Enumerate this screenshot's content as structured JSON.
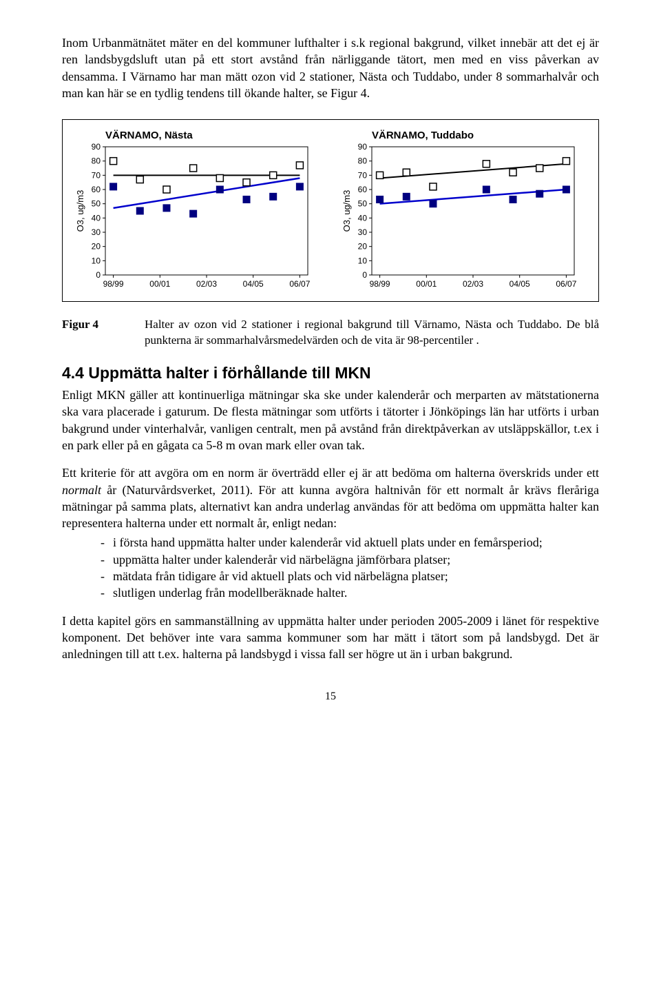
{
  "intro_para": "Inom Urbanmätnätet mäter en del kommuner lufthalter i s.k regional bakgrund, vilket innebär att det ej är ren landsbygdsluft utan på ett stort avstånd från närliggande tätort, men med en viss påverkan av densamma. I Värnamo har man mätt ozon vid 2 stationer, Nästa och Tuddabo, under 8 sommarhalvår och man kan här se en tydlig tendens till ökande halter, se Figur 4.",
  "charts": {
    "left": {
      "title": "VÄRNAMO, Nästa",
      "y_label": "O3, ug/m3",
      "y_ticks": [
        0,
        10,
        20,
        30,
        40,
        50,
        60,
        70,
        80,
        90
      ],
      "x_ticks": [
        "98/99",
        "00/01",
        "02/03",
        "04/05",
        "06/07"
      ],
      "white_markers": [
        [
          0,
          80
        ],
        [
          1,
          67
        ],
        [
          2,
          60
        ],
        [
          3,
          75
        ],
        [
          4,
          68
        ],
        [
          5,
          65
        ],
        [
          6,
          70
        ],
        [
          7,
          77
        ]
      ],
      "blue_markers": [
        [
          0,
          62
        ],
        [
          1,
          45
        ],
        [
          2,
          47
        ],
        [
          3,
          43
        ],
        [
          4,
          60
        ],
        [
          5,
          53
        ],
        [
          6,
          55
        ],
        [
          7,
          62
        ]
      ],
      "black_line": {
        "y0": 70,
        "y1": 70
      },
      "blue_line": {
        "y0": 47,
        "y1": 68
      },
      "colors": {
        "marker_fill": "#000080",
        "marker_border": "#000000",
        "white_fill": "#ffffff",
        "black": "#000000",
        "blue": "#0000cc",
        "grid": "#000000"
      }
    },
    "right": {
      "title": "VÄRNAMO, Tuddabo",
      "y_label": "O3, ug/m3",
      "y_ticks": [
        0,
        10,
        20,
        30,
        40,
        50,
        60,
        70,
        80,
        90
      ],
      "x_ticks": [
        "98/99",
        "00/01",
        "02/03",
        "04/05",
        "06/07"
      ],
      "white_markers": [
        [
          0,
          70
        ],
        [
          1,
          72
        ],
        [
          2,
          62
        ],
        [
          4,
          78
        ],
        [
          5,
          72
        ],
        [
          6,
          75
        ],
        [
          7,
          80
        ]
      ],
      "blue_markers": [
        [
          0,
          53
        ],
        [
          1,
          55
        ],
        [
          2,
          50
        ],
        [
          4,
          60
        ],
        [
          5,
          53
        ],
        [
          6,
          57
        ],
        [
          7,
          60
        ]
      ],
      "black_line": {
        "y0": 68,
        "y1": 78
      },
      "blue_line": {
        "y0": 50,
        "y1": 60
      },
      "colors": {
        "marker_fill": "#000080",
        "marker_border": "#000000",
        "white_fill": "#ffffff",
        "black": "#000000",
        "blue": "#0000cc",
        "grid": "#000000"
      }
    }
  },
  "caption_label": "Figur 4",
  "caption_text": "Halter av ozon vid 2 stationer i regional bakgrund till Värnamo, Nästa och Tuddabo. De blå punkterna är sommarhalvårsmedelvärden och de vita är 98-percentiler .",
  "heading": "4.4 Uppmätta halter i förhållande till MKN",
  "para_a": "Enligt MKN gäller att kontinuerliga mätningar ska ske under kalenderår och merparten av mätstationerna ska vara placerade i gaturum. De flesta mätningar som utförts i tätorter i Jönköpings län har utförts i urban bakgrund under vinterhalvår, vanligen centralt, men på avstånd från direktpåverkan av utsläppskällor, t.ex i en park eller på en gågata ca 5-8 m ovan mark eller ovan tak.",
  "para_b_pre": "Ett kriterie för att avgöra om en norm är överträdd eller ej är att bedöma om halterna överskrids under ett ",
  "para_b_it": "normalt",
  "para_b_post": " år (Naturvårdsverket, 2011). För att kunna avgöra haltnivån för ett normalt år krävs fleråriga mätningar på samma plats, alternativt kan andra underlag användas för att bedöma om uppmätta halter kan representera halterna under ett normalt år, enligt nedan:",
  "bullets": [
    "i första hand uppmätta halter under kalenderår vid aktuell plats under en femårsperiod;",
    "uppmätta halter under kalenderår vid närbelägna jämförbara platser;",
    "mätdata från tidigare år vid aktuell plats och vid närbelägna platser;",
    "slutligen underlag från modellberäknade halter."
  ],
  "para_c": "I detta kapitel görs en sammanställning av uppmätta halter under perioden 2005-2009 i länet för respektive komponent. Det behöver inte vara samma kommuner som har mätt i tätort som på landsbygd. Det är anledningen till att t.ex. halterna på landsbygd i vissa fall ser högre ut än i urban bakgrund.",
  "page_number": "15"
}
